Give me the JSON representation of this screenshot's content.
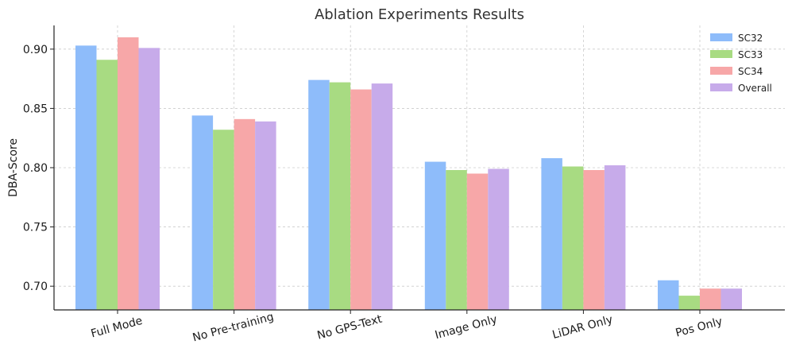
{
  "chart_data": {
    "type": "bar",
    "title": "Ablation Experiments Results",
    "xlabel": "",
    "ylabel": "DBA-Score",
    "categories": [
      "Full Mode",
      "No Pre-training",
      "No GPS-Text",
      "Image Only",
      "LiDAR Only",
      "Pos Only"
    ],
    "series": [
      {
        "name": "SC32",
        "color": "#8ebcfa",
        "values": [
          0.903,
          0.844,
          0.874,
          0.805,
          0.808,
          0.705
        ]
      },
      {
        "name": "SC33",
        "color": "#a8db82",
        "values": [
          0.891,
          0.832,
          0.872,
          0.798,
          0.801,
          0.692
        ]
      },
      {
        "name": "SC34",
        "color": "#f7a7a8",
        "values": [
          0.91,
          0.841,
          0.866,
          0.795,
          0.798,
          0.698
        ]
      },
      {
        "name": "Overall",
        "color": "#c7abea",
        "values": [
          0.901,
          0.839,
          0.871,
          0.799,
          0.802,
          0.698
        ]
      }
    ],
    "ylim": [
      0.68,
      0.92
    ],
    "yticks": [
      "0.70",
      "0.75",
      "0.80",
      "0.85",
      "0.90"
    ],
    "grid": true,
    "legend_position": "top-right"
  }
}
